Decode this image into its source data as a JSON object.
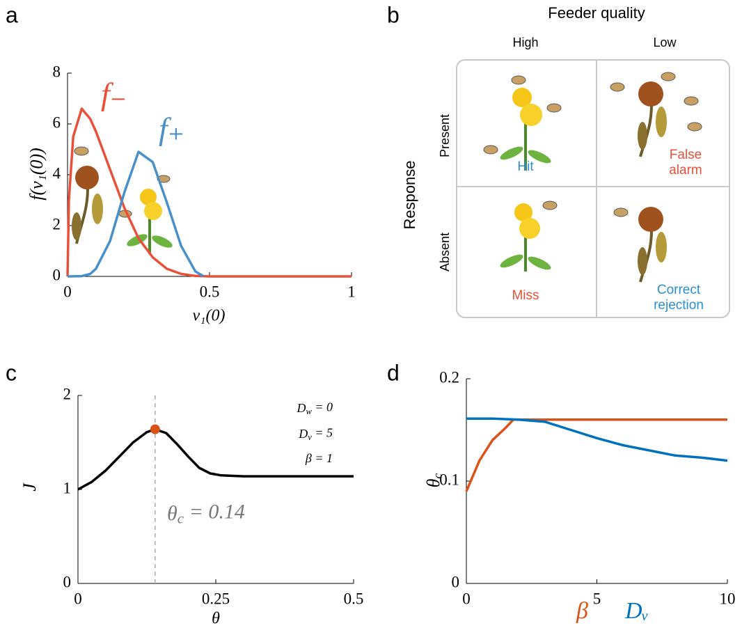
{
  "chart_data": [
    {
      "type": "line",
      "panel_label": "a",
      "xlabel": "v₁(0)",
      "ylabel": "f(v₁(0))",
      "xlim": [
        0,
        1
      ],
      "ylim": [
        0,
        8
      ],
      "xticks": [
        0,
        0.5,
        1
      ],
      "yticks": [
        0,
        2,
        4,
        6,
        8
      ],
      "series": [
        {
          "name": "f₋",
          "color": "#e8503a",
          "x": [
            0,
            0.005,
            0.02,
            0.05,
            0.08,
            0.1,
            0.15,
            0.2,
            0.25,
            0.3,
            0.35,
            0.4,
            0.45,
            0.5,
            1
          ],
          "values": [
            0,
            3,
            5.5,
            6.6,
            6.2,
            5.7,
            4.2,
            2.7,
            1.5,
            0.75,
            0.3,
            0.1,
            0.02,
            0,
            0
          ]
        },
        {
          "name": "f₊",
          "color": "#4a90c8",
          "x": [
            0,
            0.05,
            0.08,
            0.1,
            0.15,
            0.2,
            0.25,
            0.3,
            0.35,
            0.4,
            0.45,
            0.48
          ],
          "values": [
            0,
            0.01,
            0.1,
            0.3,
            1.4,
            3.3,
            4.9,
            4.5,
            2.9,
            1.2,
            0.2,
            0
          ]
        }
      ]
    },
    {
      "type": "line",
      "panel_label": "c",
      "xlabel": "θ",
      "ylabel": "J",
      "xlim": [
        0,
        0.5
      ],
      "ylim": [
        0,
        2
      ],
      "xticks": [
        0,
        0.25,
        0.5
      ],
      "yticks": [
        0,
        1,
        2
      ],
      "series": [
        {
          "color": "#000000",
          "x": [
            0,
            0.025,
            0.05,
            0.075,
            0.1,
            0.125,
            0.14,
            0.16,
            0.18,
            0.2,
            0.22,
            0.24,
            0.26,
            0.3,
            0.4,
            0.5
          ],
          "values": [
            1.0,
            1.08,
            1.2,
            1.35,
            1.5,
            1.61,
            1.64,
            1.6,
            1.48,
            1.35,
            1.23,
            1.17,
            1.15,
            1.14,
            1.14,
            1.14
          ]
        }
      ],
      "highlight": {
        "x": 0.14,
        "y": 1.64,
        "color": "#d95319"
      },
      "annotations": [
        {
          "base": "D",
          "sub": "w",
          "tail": " = 0"
        },
        {
          "base": "D",
          "sub": "v",
          "tail": " = 5"
        },
        {
          "base": "β = 1"
        },
        {
          "base": "θ",
          "sub": "c",
          "tail": " = 0.14"
        }
      ]
    },
    {
      "type": "line",
      "panel_label": "d",
      "ylabel": {
        "base": "θ",
        "sub": "c"
      },
      "xlim": [
        0,
        10
      ],
      "ylim": [
        0,
        0.2
      ],
      "xticks": [
        0,
        5,
        10
      ],
      "yticks": [
        0,
        0.1,
        0.2
      ],
      "series": [
        {
          "name": "β",
          "color": "#d95319",
          "x": [
            0,
            0.5,
            1,
            1.5,
            1.8,
            3,
            5,
            10
          ],
          "values": [
            0.09,
            0.12,
            0.14,
            0.152,
            0.16,
            0.16,
            0.16,
            0.16
          ]
        },
        {
          "name": "Dᵥ",
          "color": "#0072bd",
          "x": [
            0,
            1,
            2,
            3,
            4,
            5,
            6,
            7,
            8,
            9,
            10
          ],
          "values": [
            0.161,
            0.161,
            0.16,
            0.158,
            0.15,
            0.142,
            0.135,
            0.13,
            0.125,
            0.123,
            0.12
          ]
        }
      ]
    }
  ],
  "diagram": {
    "panel_label": "b",
    "title": "Feeder quality",
    "columns": [
      "High",
      "Low"
    ],
    "row_title": "Response",
    "rows": [
      "Present",
      "Absent"
    ],
    "cells": [
      [
        "Hit",
        "False alarm"
      ],
      [
        "Miss",
        "Correct rejection"
      ]
    ]
  }
}
